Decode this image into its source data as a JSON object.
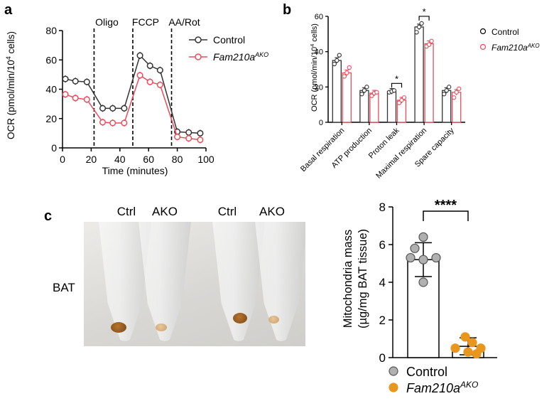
{
  "panels": {
    "a": "a",
    "b": "b",
    "c": "c"
  },
  "colors": {
    "control": "#333333",
    "ako": "#ee4b5a",
    "ctrl_dot": "#b0b0b0",
    "ako_dot": "#e8961e"
  },
  "chart_data": [
    {
      "type": "line",
      "panel": "a",
      "xlabel": "Time (minutes)",
      "ylabel": "OCR (pmol/min/10",
      "ylabel_sup": "4",
      "ylabel_tail": " cells)",
      "xlim": [
        0,
        100
      ],
      "ylim": [
        0,
        80
      ],
      "xticks": [
        "0",
        "20",
        "40",
        "60",
        "80",
        "100"
      ],
      "yticks": [
        "0",
        "20",
        "40",
        "60",
        "80"
      ],
      "annotations": [
        {
          "label": "Oligo",
          "x": 22
        },
        {
          "label": "FCCP",
          "x": 49
        },
        {
          "label": "AA/Rot",
          "x": 76
        }
      ],
      "x": [
        2,
        9,
        17,
        28,
        35,
        43,
        54,
        61,
        68,
        80,
        88,
        96
      ],
      "series": [
        {
          "name": "Control",
          "values": [
            47,
            45.5,
            45,
            27,
            27,
            27,
            63,
            56,
            53,
            11,
            10.5,
            10
          ]
        },
        {
          "name": "Fam210a",
          "name_sup": "AKO",
          "values": [
            36.5,
            34,
            33,
            17.5,
            17,
            17,
            49.5,
            45,
            43,
            7.5,
            6.5,
            5.5
          ]
        }
      ]
    },
    {
      "type": "bar",
      "panel": "b",
      "ylabel": "OCR (pmol/min/10",
      "ylabel_sup": "4",
      "ylabel_tail": " cells)",
      "ylim": [
        0,
        60
      ],
      "yticks": [
        "0",
        "20",
        "40",
        "60"
      ],
      "categories": [
        "Basal respiration",
        "ATP production",
        "Proton leak",
        "Maximal respiration",
        "Spare capacity"
      ],
      "series": [
        {
          "name": "Control",
          "values": [
            35,
            18,
            17.5,
            54,
            18
          ],
          "points": [
            [
              33,
              35,
              38
            ],
            [
              16,
              18,
              20
            ],
            [
              17,
              17.5,
              18
            ],
            [
              51,
              54,
              56
            ],
            [
              16,
              18,
              20
            ]
          ]
        },
        {
          "name": "Fam210a",
          "name_sup": "AKO",
          "values": [
            28,
            16.5,
            12.5,
            44.5,
            17
          ],
          "points": [
            [
              26,
              28,
              31
            ],
            [
              15,
              16.5,
              17
            ],
            [
              11,
              12.5,
              14
            ],
            [
              43,
              44,
              46
            ],
            [
              14,
              17,
              19
            ]
          ]
        }
      ],
      "significance": [
        {
          "category": "Proton leak",
          "label": "*"
        },
        {
          "category": "Maximal respiration",
          "label": "*"
        }
      ]
    },
    {
      "type": "bar",
      "panel": "c",
      "ylabel_line1": "Mitochondria mass",
      "ylabel_line2": "(µg/mg BAT tissue)",
      "ylim": [
        0,
        8
      ],
      "yticks": [
        "0",
        "2",
        "4",
        "6",
        "8"
      ],
      "categories": [
        "Control",
        "Fam210a"
      ],
      "series": [
        {
          "name": "Control",
          "mean": 5.2,
          "sd": 0.9,
          "points": [
            6.4,
            5.8,
            5.3,
            5.3,
            5.2,
            4.0
          ]
        },
        {
          "name": "Fam210a",
          "name_sup": "AKO",
          "mean": 0.6,
          "sd": 0.45,
          "points": [
            1.1,
            0.8,
            0.5,
            0.5,
            0.3,
            0.2
          ]
        }
      ],
      "significance": {
        "label": "****"
      }
    }
  ],
  "photo": {
    "row_label": "BAT",
    "tube_labels": [
      "Ctrl",
      "AKO",
      "Ctrl",
      "AKO"
    ]
  }
}
